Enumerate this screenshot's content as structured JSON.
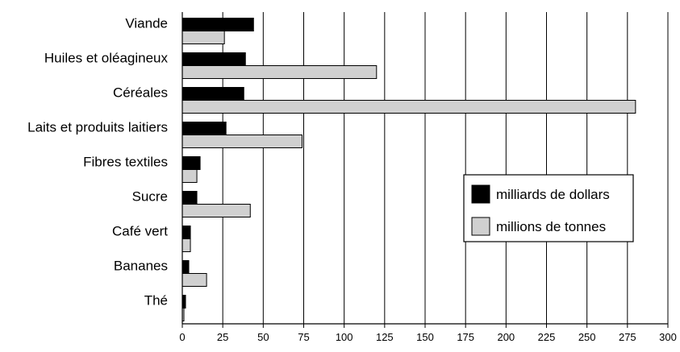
{
  "chart_data": {
    "type": "bar",
    "orientation": "horizontal",
    "categories": [
      "Viande",
      "Huiles et oléagineux",
      "Céréales",
      "Laits et produits laitiers",
      "Fibres textiles",
      "Sucre",
      "Café vert",
      "Bananes",
      "Thé"
    ],
    "series": [
      {
        "name": "milliards de dollars",
        "color": "#000000",
        "values": [
          44,
          39,
          38,
          27,
          11,
          9,
          5,
          4,
          2
        ]
      },
      {
        "name": "millions de tonnes",
        "color": "#d0d0d0",
        "values": [
          26,
          120,
          280,
          74,
          9,
          42,
          5,
          15,
          1
        ]
      }
    ],
    "xlim": [
      0,
      300
    ],
    "xticks": [
      0,
      25,
      50,
      75,
      100,
      125,
      150,
      175,
      200,
      225,
      250,
      275,
      300
    ],
    "grid": "vertical",
    "legend_position": "right",
    "title": "",
    "xlabel": "",
    "ylabel": ""
  }
}
